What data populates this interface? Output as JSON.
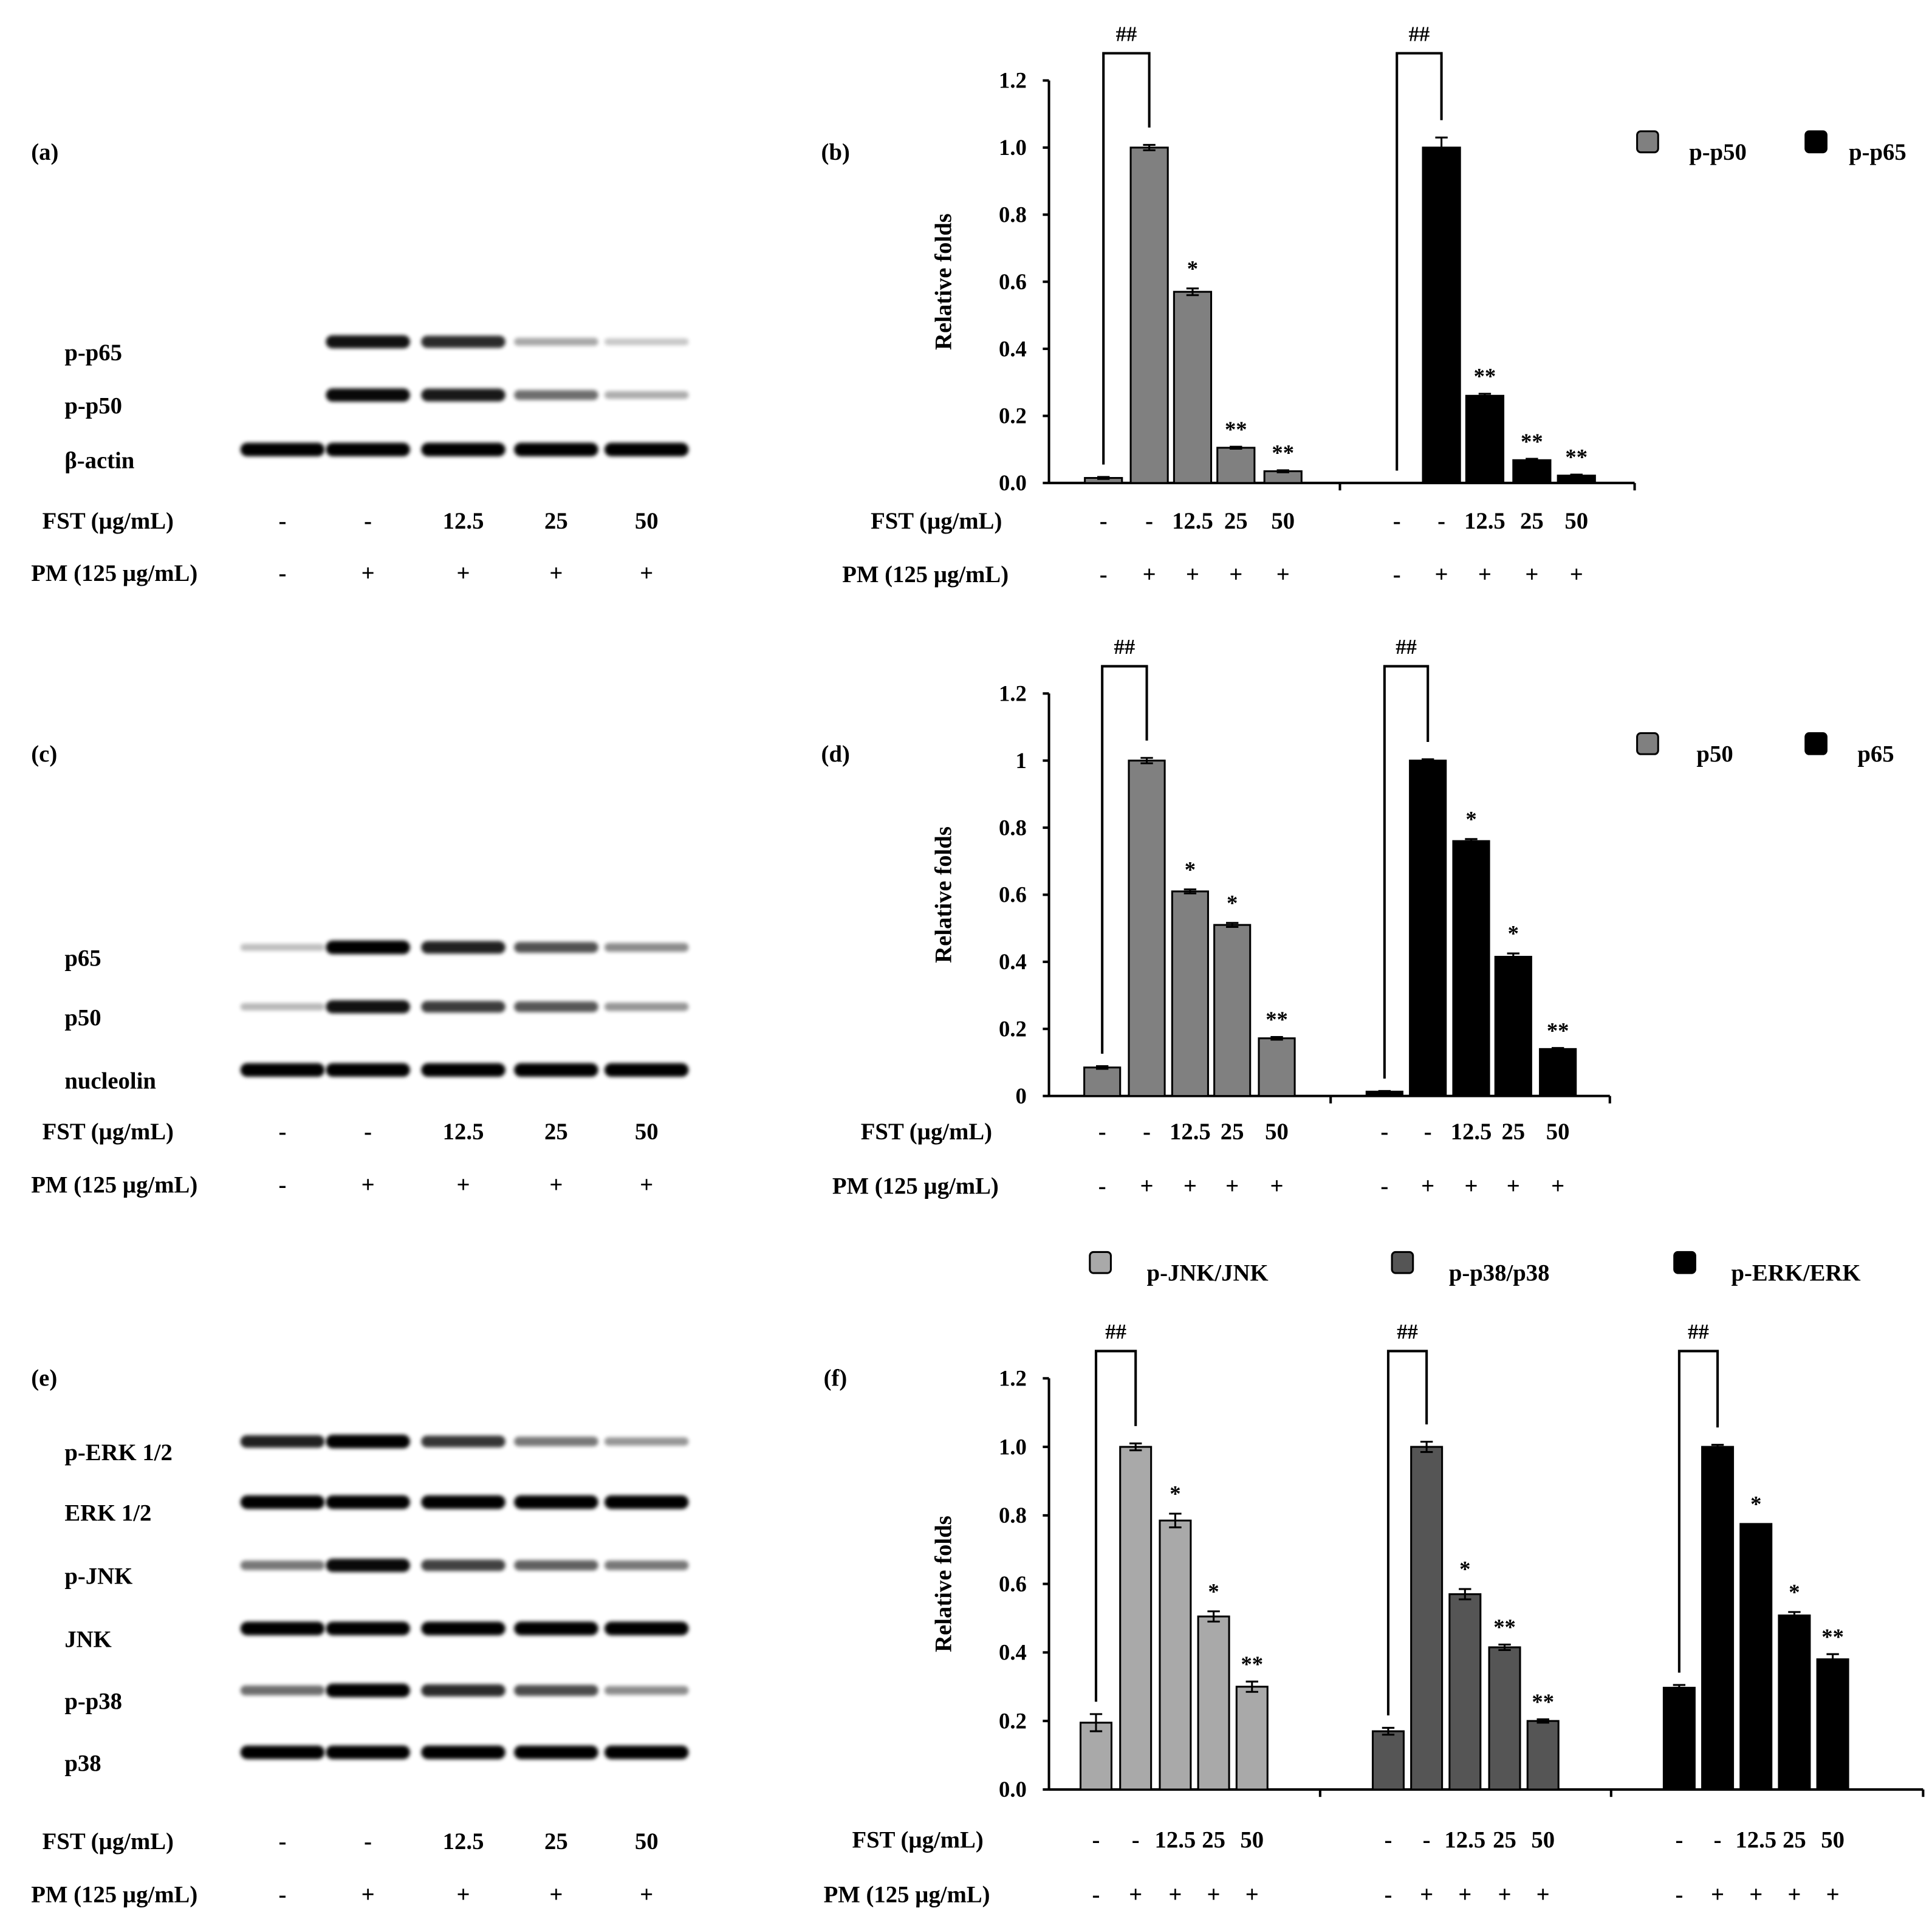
{
  "figure": {
    "row_labels": {
      "fst": "FST (µg/mL)",
      "pm": "PM (125 µg/mL)"
    },
    "treatment_values": {
      "fst": [
        "-",
        "-",
        "12.5",
        "25",
        "50"
      ],
      "pm": [
        "-",
        "+",
        "+",
        "+",
        "+"
      ]
    },
    "significance": {
      "control_bracket": "##",
      "single": "*",
      "double": "**"
    },
    "panels": {
      "a": {
        "label": "(a)",
        "bands": [
          "p-p65",
          "p-p50",
          "β-actin"
        ]
      },
      "c": {
        "label": "(c)",
        "bands": [
          "p65",
          "p50",
          "nucleolin"
        ]
      },
      "e": {
        "label": "(e)",
        "bands": [
          "p-ERK 1/2",
          "ERK 1/2",
          "p-JNK",
          "JNK",
          "p-p38",
          "p38"
        ]
      }
    },
    "colors": {
      "light_gray": "#a9a9a9",
      "gray": "#808080",
      "dark_gray": "#555555",
      "black": "#000000"
    }
  },
  "chart_data": [
    {
      "panel": "(b)",
      "type": "bar",
      "ylabel": "Relative folds",
      "ylim": [
        0,
        1.2
      ],
      "yticks": [
        "0.0",
        "0.2",
        "0.4",
        "0.6",
        "0.8",
        "1.0",
        "1.2"
      ],
      "legend_position": "top-right",
      "categories": [
        "-/-",
        "-/+",
        "12.5/+",
        "25/+",
        "50/+"
      ],
      "series": [
        {
          "name": "p-p50",
          "color": "#808080",
          "values": [
            0.015,
            1.0,
            0.57,
            0.105,
            0.035
          ],
          "errors": [
            0.003,
            0.008,
            0.01,
            0.003,
            0.003
          ],
          "sig": [
            "",
            "",
            "*",
            "**",
            "**"
          ]
        },
        {
          "name": "p-p65",
          "color": "#000000",
          "values": [
            0.0,
            1.0,
            0.26,
            0.068,
            0.022
          ],
          "errors": [
            0,
            0.03,
            0.006,
            0.004,
            0.003
          ],
          "sig": [
            "",
            "",
            "**",
            "**",
            "**"
          ]
        }
      ]
    },
    {
      "panel": "(d)",
      "type": "bar",
      "ylabel": "Relative folds",
      "ylim": [
        0,
        1.2
      ],
      "yticks": [
        "0",
        "0.2",
        "0.4",
        "0.6",
        "0.8",
        "1",
        "1.2"
      ],
      "legend_position": "top-right",
      "categories": [
        "-/-",
        "-/+",
        "12.5/+",
        "25/+",
        "50/+"
      ],
      "series": [
        {
          "name": "p50",
          "color": "#808080",
          "values": [
            0.085,
            1.0,
            0.61,
            0.51,
            0.172
          ],
          "errors": [
            0.004,
            0.008,
            0.006,
            0.006,
            0.004
          ],
          "sig": [
            "",
            "",
            "*",
            "*",
            "**"
          ]
        },
        {
          "name": "p65",
          "color": "#000000",
          "values": [
            0.013,
            1.0,
            0.76,
            0.415,
            0.14
          ],
          "errors": [
            0.002,
            0.004,
            0.006,
            0.01,
            0.003
          ],
          "sig": [
            "",
            "",
            "*",
            "*",
            "**"
          ]
        }
      ]
    },
    {
      "panel": "(f)",
      "type": "bar",
      "ylabel": "Relative folds",
      "ylim": [
        0,
        1.2
      ],
      "yticks": [
        "0.0",
        "0.2",
        "0.4",
        "0.6",
        "0.8",
        "1.0",
        "1.2"
      ],
      "legend_position": "top",
      "categories": [
        "-/-",
        "-/+",
        "12.5/+",
        "25/+",
        "50/+"
      ],
      "series": [
        {
          "name": "p-JNK/JNK",
          "color": "#a9a9a9",
          "values": [
            0.195,
            1.0,
            0.785,
            0.505,
            0.3
          ],
          "errors": [
            0.025,
            0.01,
            0.02,
            0.015,
            0.015
          ],
          "sig": [
            "",
            "",
            "*",
            "*",
            "**"
          ]
        },
        {
          "name": "p-p38/p38",
          "color": "#555555",
          "values": [
            0.17,
            1.0,
            0.57,
            0.415,
            0.2
          ],
          "errors": [
            0.01,
            0.015,
            0.015,
            0.008,
            0.005
          ],
          "sig": [
            "",
            "",
            "*",
            "**",
            "**"
          ]
        },
        {
          "name": "p-ERK/ERK",
          "color": "#000000",
          "values": [
            0.297,
            1.0,
            0.775,
            0.508,
            0.38
          ],
          "errors": [
            0.008,
            0.006,
            0,
            0.01,
            0.015
          ],
          "sig": [
            "",
            "",
            "*",
            "*",
            "**"
          ]
        }
      ]
    }
  ]
}
